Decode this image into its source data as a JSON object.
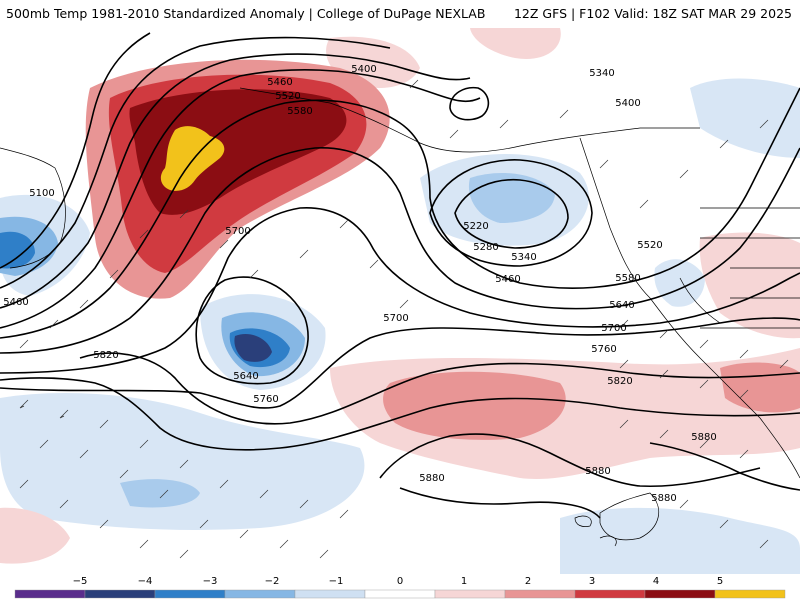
{
  "header": {
    "title": "500mb Temp 1981-2010 Standardized Anomaly | College of DuPage NEXLAB",
    "run_info": "12Z GFS | F102 Valid: 18Z SAT MAR 29 2025"
  },
  "contour_labels": [
    "5460",
    "5520",
    "5580",
    "5400",
    "5340",
    "5400",
    "5100",
    "5700",
    "5460",
    "5220",
    "5280",
    "5340",
    "5460",
    "5520",
    "5580",
    "5640",
    "5700",
    "5700",
    "5760",
    "5820",
    "5820",
    "5640",
    "5760",
    "5880",
    "5880",
    "5880",
    "5880"
  ],
  "legend": {
    "ticks": [
      "−5",
      "−4",
      "−3",
      "−2",
      "−1",
      "0",
      "1",
      "2",
      "3",
      "4",
      "5"
    ],
    "colors": [
      "#5a2d8c",
      "#2a3f7a",
      "#2f7fc8",
      "#86b7e4",
      "#cfe0f2",
      "#ffffff",
      "#f6d6d6",
      "#e89595",
      "#d03a40",
      "#8b0d13",
      "#f2c21b"
    ]
  }
}
